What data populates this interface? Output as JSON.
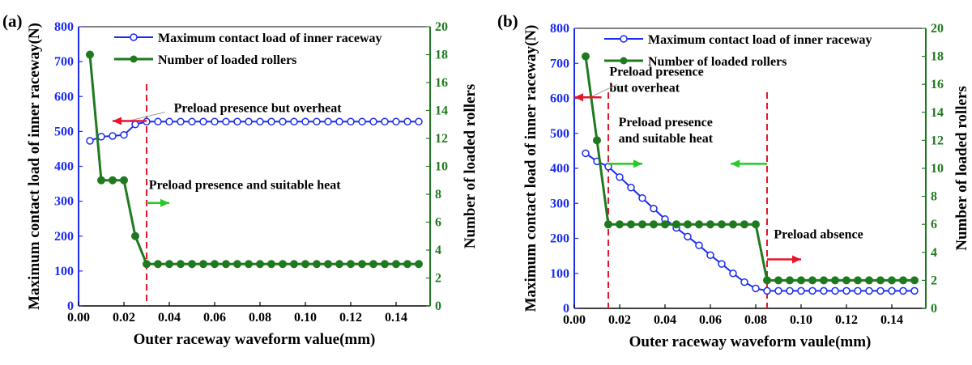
{
  "chart_data": [
    {
      "type": "line",
      "panel_label": "(a)",
      "xlabel": "Outer raceway waveform value(mm)",
      "ylabel": "Maximum contact load of inner raceway(N)",
      "y2label": "Number of loaded rollers",
      "xlim": [
        0,
        0.155
      ],
      "ylim": [
        0,
        800
      ],
      "y2lim": [
        0,
        20
      ],
      "xticks": [
        "0.00",
        "0.02",
        "0.04",
        "0.06",
        "0.08",
        "0.10",
        "0.12",
        "0.14"
      ],
      "yticks": [
        "0",
        "100",
        "200",
        "300",
        "400",
        "500",
        "600",
        "700",
        "800"
      ],
      "y2ticks": [
        "0",
        "2",
        "4",
        "6",
        "8",
        "10",
        "12",
        "14",
        "16",
        "18",
        "20"
      ],
      "legend": [
        "Maximum contact load of inner raceway",
        "Number of loaded rollers"
      ],
      "colors": {
        "load": "#1a2cf0",
        "rollers": "#1f7a1f",
        "marker": "#e8142a",
        "leader": "#999999"
      },
      "series": [
        {
          "name": "Maximum contact load of inner raceway",
          "axis": "left",
          "marker": "open-circle",
          "x": [
            0.005,
            0.01,
            0.015,
            0.02,
            0.025,
            0.03,
            0.035,
            0.04,
            0.045,
            0.05,
            0.055,
            0.06,
            0.065,
            0.07,
            0.075,
            0.08,
            0.085,
            0.09,
            0.095,
            0.1,
            0.105,
            0.11,
            0.115,
            0.12,
            0.125,
            0.13,
            0.135,
            0.14,
            0.145,
            0.15
          ],
          "y": [
            473,
            485,
            487,
            490,
            520,
            528,
            528,
            528,
            528,
            528,
            528,
            528,
            528,
            528,
            528,
            528,
            528,
            528,
            528,
            528,
            528,
            528,
            528,
            528,
            528,
            528,
            528,
            528,
            528,
            528
          ]
        },
        {
          "name": "Number of loaded rollers",
          "axis": "right",
          "marker": "filled-circle",
          "x": [
            0.005,
            0.01,
            0.015,
            0.02,
            0.025,
            0.03,
            0.035,
            0.04,
            0.045,
            0.05,
            0.055,
            0.06,
            0.065,
            0.07,
            0.075,
            0.08,
            0.085,
            0.09,
            0.095,
            0.1,
            0.105,
            0.11,
            0.115,
            0.12,
            0.125,
            0.13,
            0.135,
            0.14,
            0.145,
            0.15
          ],
          "y": [
            18,
            9,
            9,
            9,
            5,
            3,
            3,
            3,
            3,
            3,
            3,
            3,
            3,
            3,
            3,
            3,
            3,
            3,
            3,
            3,
            3,
            3,
            3,
            3,
            3,
            3,
            3,
            3,
            3,
            3
          ]
        }
      ],
      "vlines": [
        0.03
      ],
      "annotations": [
        {
          "lines": [
            "Preload presence but overheat"
          ],
          "x": 0.042,
          "y": 555,
          "arrow": "left",
          "arrow_x": [
            0.015,
            0.03
          ],
          "arrow_y": 530,
          "arrow_color": "red",
          "leader_from": [
            0.038,
            555
          ],
          "leader_to": [
            0.022,
            530
          ]
        },
        {
          "lines": [
            "Preload presence and suitable heat"
          ],
          "x": 0.031,
          "y": 335,
          "arrow": "right",
          "arrow_x": [
            0.03,
            0.04
          ],
          "arrow_y": 295,
          "arrow_color": "green"
        }
      ]
    },
    {
      "type": "line",
      "panel_label": "(b)",
      "xlabel": "Outer raceway waveform vaule(mm)",
      "ylabel": "Maximum contact load of inner raceway(N)",
      "y2label": "Number of loaded rollers",
      "xlim": [
        0,
        0.155
      ],
      "ylim": [
        0,
        800
      ],
      "y2lim": [
        0,
        20
      ],
      "xticks": [
        "0.00",
        "0.02",
        "0.04",
        "0.06",
        "0.08",
        "0.10",
        "0.12",
        "0.14"
      ],
      "yticks": [
        "0",
        "100",
        "200",
        "300",
        "400",
        "500",
        "600",
        "700",
        "800"
      ],
      "y2ticks": [
        "0",
        "2",
        "4",
        "6",
        "8",
        "10",
        "12",
        "14",
        "16",
        "18",
        "20"
      ],
      "legend": [
        "Maximum contact load of inner raceway",
        "Number of loaded rollers"
      ],
      "colors": {
        "load": "#1a2cf0",
        "rollers": "#1f7a1f",
        "marker": "#e8142a",
        "leader": "#999999"
      },
      "series": [
        {
          "name": "Maximum contact load of inner raceway",
          "axis": "left",
          "marker": "open-circle",
          "x": [
            0.005,
            0.01,
            0.015,
            0.02,
            0.025,
            0.03,
            0.035,
            0.04,
            0.045,
            0.05,
            0.055,
            0.06,
            0.065,
            0.07,
            0.075,
            0.08,
            0.085,
            0.09,
            0.095,
            0.1,
            0.105,
            0.11,
            0.115,
            0.12,
            0.125,
            0.13,
            0.135,
            0.14,
            0.145,
            0.15
          ],
          "y": [
            443,
            420,
            405,
            375,
            345,
            315,
            285,
            255,
            230,
            205,
            180,
            152,
            127,
            100,
            75,
            57,
            50,
            50,
            50,
            50,
            50,
            50,
            50,
            50,
            50,
            50,
            50,
            50,
            50,
            50
          ]
        },
        {
          "name": "Number of loaded rollers",
          "axis": "right",
          "marker": "filled-circle",
          "x": [
            0.005,
            0.01,
            0.015,
            0.02,
            0.025,
            0.03,
            0.035,
            0.04,
            0.045,
            0.05,
            0.055,
            0.06,
            0.065,
            0.07,
            0.075,
            0.08,
            0.085,
            0.09,
            0.095,
            0.1,
            0.105,
            0.11,
            0.115,
            0.12,
            0.125,
            0.13,
            0.135,
            0.14,
            0.145,
            0.15
          ],
          "y": [
            18,
            12,
            6,
            6,
            6,
            6,
            6,
            6,
            6,
            6,
            6,
            6,
            6,
            6,
            6,
            6,
            2,
            2,
            2,
            2,
            2,
            2,
            2,
            2,
            2,
            2,
            2,
            2,
            2,
            2
          ]
        }
      ],
      "vlines": [
        0.015,
        0.085
      ],
      "annotations": [
        {
          "lines": [
            "Preload presence",
            "but overheat"
          ],
          "x": 0.0155,
          "y": 665,
          "arrow": "left",
          "arrow_x": [
            0.0,
            0.012
          ],
          "arrow_y": 603,
          "arrow_color": "red",
          "leader_from": [
            0.019,
            640
          ],
          "leader_to": [
            0.007,
            603
          ]
        },
        {
          "lines": [
            "Preload presence",
            "and suitable heat"
          ],
          "x": 0.0195,
          "y": 520,
          "arrow": "left",
          "arrow_x": [
            0.069,
            0.085
          ],
          "arrow_y": 413,
          "arrow_color": "green"
        },
        {
          "lines": [],
          "x": 0.015,
          "y": 413,
          "arrow": "right",
          "arrow_x": [
            0.015,
            0.03
          ],
          "arrow_y": 413,
          "arrow_color": "green"
        },
        {
          "lines": [
            "Preload absence"
          ],
          "x": 0.088,
          "y": 200,
          "arrow": "right",
          "arrow_x": [
            0.085,
            0.1
          ],
          "arrow_y": 140,
          "arrow_color": "red"
        }
      ]
    }
  ]
}
